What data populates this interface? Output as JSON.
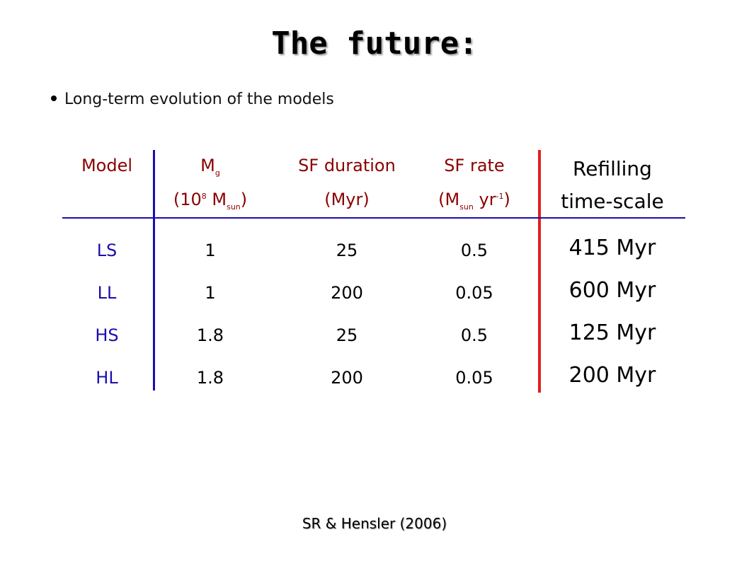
{
  "title": "The future:",
  "bullet": "Long-term evolution of the models",
  "header": {
    "model": "Model",
    "mg_main": "M",
    "mg_sub": "g",
    "mg_unit_pre": "(10",
    "mg_unit_sup": "8",
    "mg_unit_mid": " M",
    "mg_unit_sub": "sun",
    "mg_unit_post": ")",
    "sf_duration": "SF duration",
    "sf_duration_unit": "(Myr)",
    "sf_rate": "SF rate",
    "sf_rate_unit_pre": "(M",
    "sf_rate_unit_sub": "sun",
    "sf_rate_unit_mid": " yr",
    "sf_rate_unit_sup": "-1",
    "sf_rate_unit_post": ")",
    "refill_1": "Refilling",
    "refill_2": "time-scale"
  },
  "rows": [
    {
      "model": "LS",
      "mg": "1",
      "sf_duration": "25",
      "sf_rate": "0.5",
      "refill": "415 Myr"
    },
    {
      "model": "LL",
      "mg": "1",
      "sf_duration": "200",
      "sf_rate": "0.05",
      "refill": "600 Myr"
    },
    {
      "model": "HS",
      "mg": "1.8",
      "sf_duration": "25",
      "sf_rate": "0.5",
      "refill": "125 Myr"
    },
    {
      "model": "HL",
      "mg": "1.8",
      "sf_duration": "200",
      "sf_rate": "0.05",
      "refill": "200 Myr"
    }
  ],
  "footer": "SR & Hensler (2006)",
  "colors": {
    "header_text": "#8b0000",
    "model_text": "#1a0eae",
    "rule_blue": "#1a0eae",
    "rule_red": "#e02020"
  }
}
